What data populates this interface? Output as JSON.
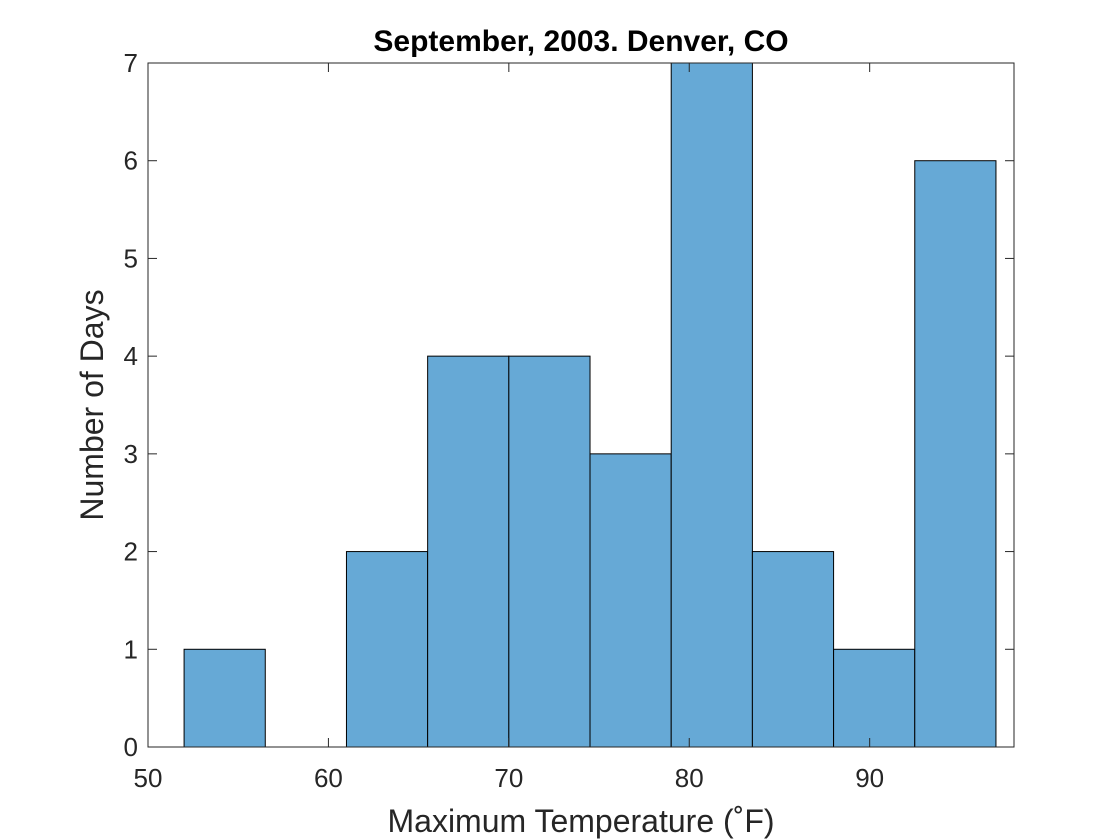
{
  "chart_data": {
    "type": "bar",
    "title": "September, 2003. Denver, CO",
    "xlabel": "Maximum Temperature (˚F)",
    "ylabel": "Number of Days",
    "xlim": [
      50,
      98
    ],
    "ylim": [
      0,
      7
    ],
    "xticks": [
      50,
      60,
      70,
      80,
      90
    ],
    "yticks": [
      0,
      1,
      2,
      3,
      4,
      5,
      6,
      7
    ],
    "bin_edges": [
      52,
      56.5,
      61,
      65.5,
      70,
      74.5,
      79,
      83.5,
      88,
      92.5,
      97
    ],
    "values": [
      1,
      0,
      2,
      4,
      4,
      3,
      7,
      2,
      1,
      6
    ],
    "grid": false,
    "colors": {
      "bar_fill": "#66a9d6",
      "bar_edge": "#000000",
      "axis": "#262626"
    }
  }
}
